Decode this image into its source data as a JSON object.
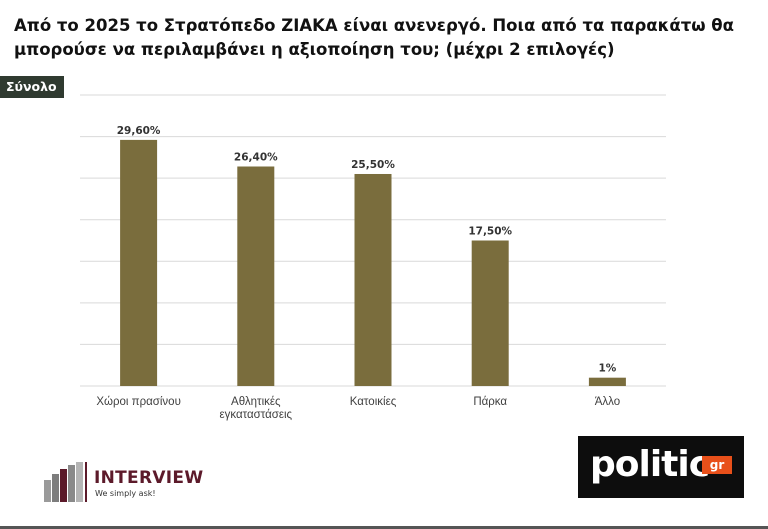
{
  "title": "Από το 2025 το Στρατόπεδο ΖΙΑΚΑ είναι ανενεργό. Ποια από τα παρακάτω θα μπορούσε να περιλαμβάνει η αξιοποίηση του; (μέχρι 2 επιλογές)",
  "tag_label": "Σύνολο",
  "colors": {
    "bar": "#7a6d3d",
    "grid": "#d9d9d9",
    "tag_bg": "#2f3a30",
    "brand_red": "#5c1a2a",
    "politic_orange": "#e8501a"
  },
  "chart_data": {
    "type": "bar",
    "categories": [
      [
        "Χώροι πρασίνου"
      ],
      [
        "Αθλητικές",
        "εγκαταστάσεις"
      ],
      [
        "Κατοικίες"
      ],
      [
        "Πάρκα"
      ],
      [
        "Άλλο"
      ]
    ],
    "values": [
      29.6,
      26.4,
      25.5,
      17.5,
      1
    ],
    "data_labels": [
      "29,60%",
      "26,40%",
      "25,50%",
      "17,50%",
      "1%"
    ],
    "ylim": [
      0,
      35
    ],
    "grid": true,
    "legend": "none"
  },
  "logos": {
    "interview_name": "INTERVIEW",
    "interview_tagline": "We simply ask!",
    "politic_word": "politic",
    "politic_tld": "gr"
  }
}
